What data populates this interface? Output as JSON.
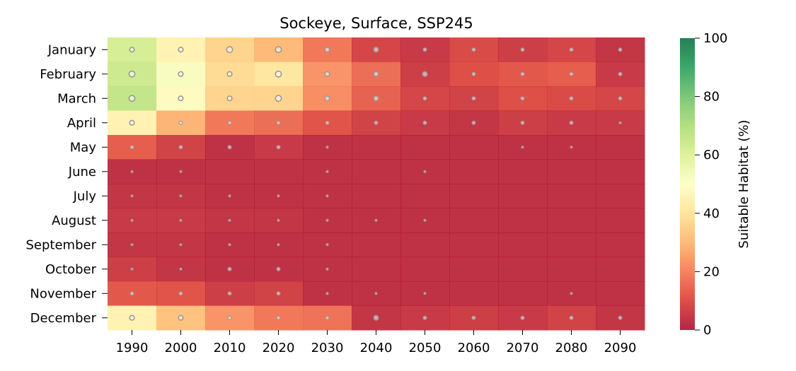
{
  "chart_data": {
    "type": "heatmap",
    "title": "Sockeye, Surface, SSP245",
    "x": [
      "1990",
      "2000",
      "2010",
      "2020",
      "2030",
      "2040",
      "2050",
      "2060",
      "2070",
      "2080",
      "2090"
    ],
    "y": [
      "January",
      "February",
      "March",
      "April",
      "May",
      "June",
      "July",
      "August",
      "September",
      "October",
      "November",
      "December"
    ],
    "values": [
      [
        62,
        45,
        36,
        30,
        18,
        8,
        5,
        9,
        6,
        8,
        4
      ],
      [
        64,
        52,
        38,
        41,
        23,
        16,
        6,
        10,
        12,
        13,
        5
      ],
      [
        66,
        48,
        36,
        36,
        22,
        14,
        8,
        7,
        10,
        9,
        8
      ],
      [
        45,
        29,
        18,
        16,
        11,
        7,
        5,
        4,
        6,
        5,
        5
      ],
      [
        13,
        7,
        3,
        5,
        3,
        3,
        3,
        3,
        3,
        3,
        3
      ],
      [
        3,
        3,
        3,
        3,
        3,
        3,
        3,
        3,
        3,
        3,
        3
      ],
      [
        4,
        4,
        3,
        3,
        3,
        3,
        3,
        3,
        3,
        3,
        3
      ],
      [
        5,
        5,
        4,
        4,
        3,
        3,
        3,
        3,
        3,
        3,
        3
      ],
      [
        4,
        4,
        3,
        3,
        3,
        3,
        3,
        3,
        3,
        3,
        3
      ],
      [
        6,
        4,
        3,
        3,
        3,
        3,
        3,
        3,
        3,
        3,
        3
      ],
      [
        12,
        11,
        6,
        7,
        3,
        3,
        3,
        3,
        3,
        3,
        3
      ],
      [
        45,
        32,
        23,
        18,
        17,
        4,
        5,
        6,
        5,
        7,
        4
      ]
    ],
    "marker_size": [
      [
        3,
        3,
        4,
        4,
        3,
        3,
        2,
        2,
        2,
        2,
        2
      ],
      [
        4,
        3,
        3,
        4,
        3,
        3,
        3,
        2,
        2,
        2,
        2
      ],
      [
        4,
        3,
        3,
        4,
        3,
        3,
        2,
        2,
        2,
        2,
        2
      ],
      [
        3,
        2,
        2,
        2,
        2,
        2,
        2,
        2,
        2,
        2,
        1
      ],
      [
        2,
        2,
        2,
        2,
        1,
        0,
        0,
        0,
        1,
        1,
        0
      ],
      [
        1,
        1,
        0,
        0,
        1,
        0,
        1,
        0,
        0,
        0,
        0
      ],
      [
        1,
        1,
        1,
        1,
        1,
        0,
        0,
        0,
        0,
        0,
        0
      ],
      [
        1,
        1,
        1,
        1,
        1,
        1,
        1,
        0,
        0,
        0,
        0
      ],
      [
        1,
        1,
        1,
        1,
        1,
        0,
        0,
        0,
        0,
        0,
        0
      ],
      [
        1,
        1,
        2,
        2,
        1,
        0,
        0,
        0,
        0,
        0,
        0
      ],
      [
        2,
        2,
        2,
        2,
        1,
        1,
        1,
        0,
        0,
        1,
        0
      ],
      [
        3,
        3,
        2,
        2,
        2,
        3,
        2,
        2,
        2,
        2,
        2
      ]
    ],
    "colorbar": {
      "label": "Suitable Habitat (%)",
      "range": [
        0,
        100
      ],
      "ticks": [
        "0",
        "20",
        "40",
        "60",
        "80",
        "100"
      ],
      "colormap": "RdYlGn"
    },
    "grid": false
  }
}
